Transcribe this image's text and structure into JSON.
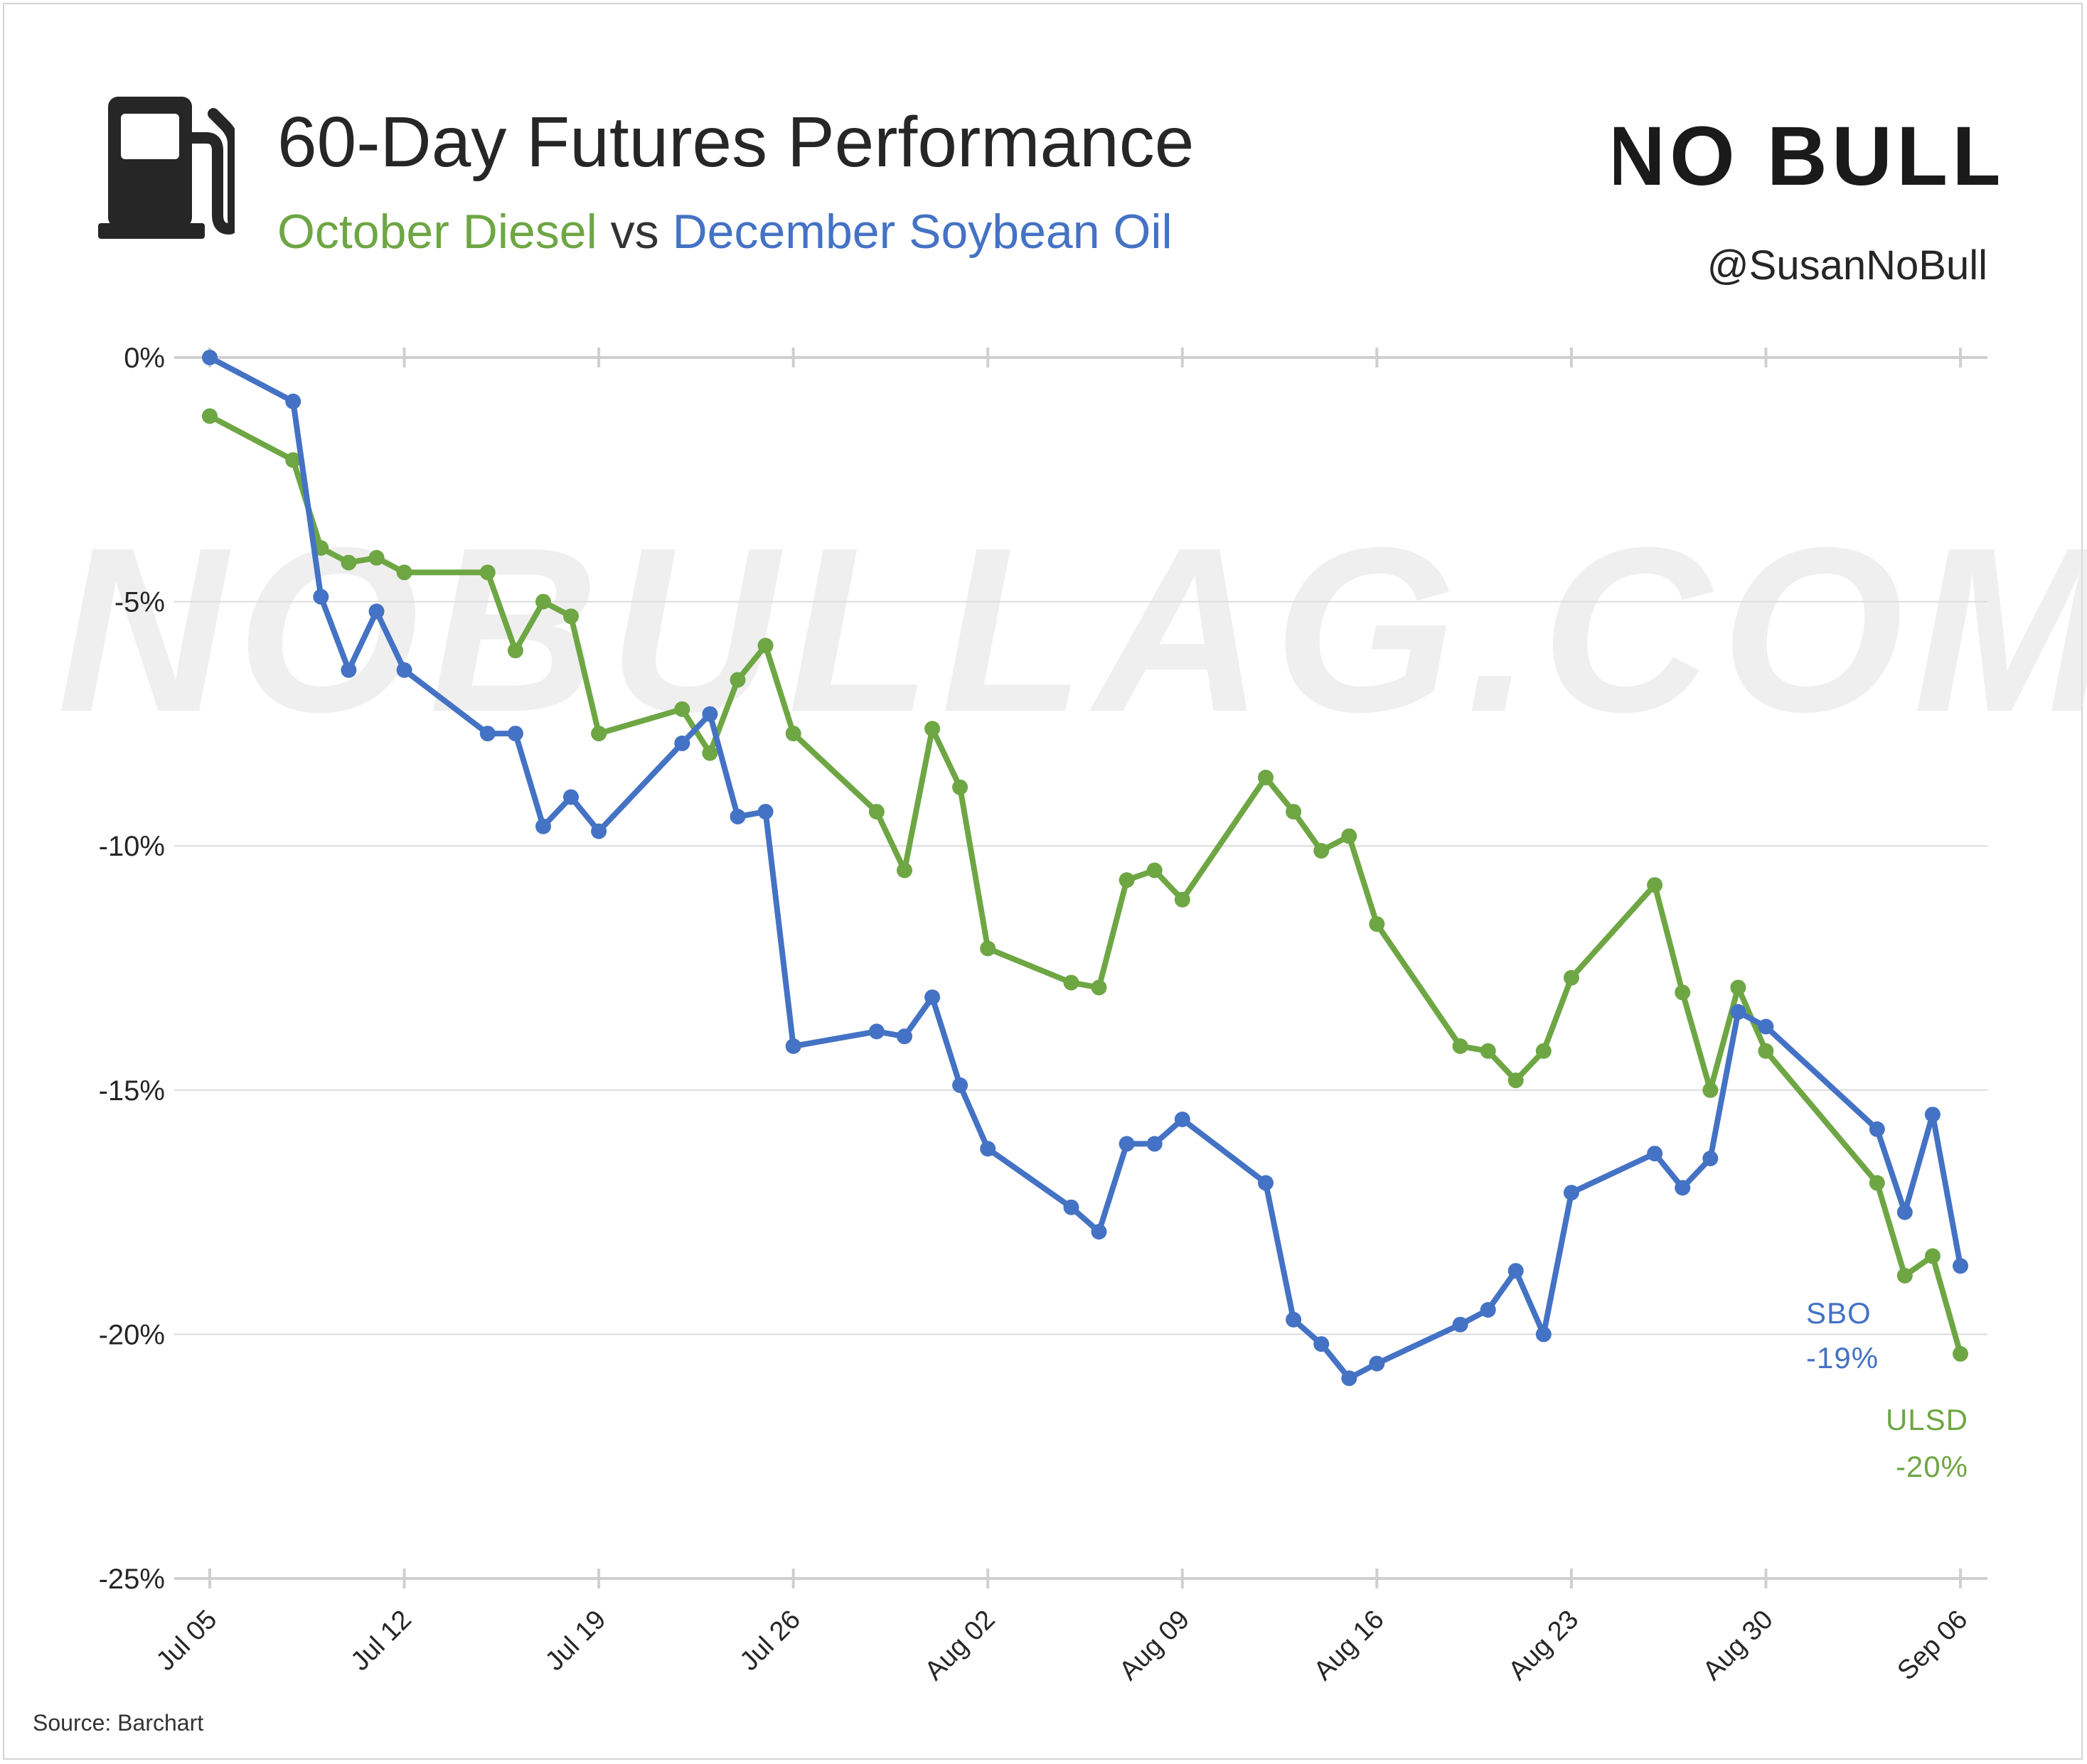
{
  "header": {
    "title": "60-Day Futures Performance",
    "subtitle_part1": "October Diesel",
    "subtitle_vs": "vs",
    "subtitle_part2": "December Soybean Oil",
    "handle": "@SusanNoBull",
    "logo_text": "NO BULL",
    "icon": "gas-pump-icon"
  },
  "watermark": "NOBULLAG.COM",
  "source": "Source: Barchart",
  "colors": {
    "diesel": "#6ea644",
    "soybean_oil": "#4472c4",
    "grid": "#dcdcdc",
    "text": "#262626"
  },
  "chart_data": {
    "type": "line",
    "title": "60-Day Futures Performance",
    "subtitle": "October Diesel vs December Soybean Oil",
    "xlabel": "",
    "ylabel": "",
    "x_ticks": [
      "Jul 05",
      "Jul 12",
      "Jul 19",
      "Jul 26",
      "Aug 02",
      "Aug 09",
      "Aug 16",
      "Aug 23",
      "Aug 30",
      "Sep 06"
    ],
    "y_ticks": [
      "0%",
      "-5%",
      "-10%",
      "-15%",
      "-20%",
      "-25%"
    ],
    "ylim": [
      -25,
      0
    ],
    "grid": true,
    "legend": "end-of-line labels",
    "series": [
      {
        "name": "ULSD",
        "end_label_value": "-20%",
        "points": [
          [
            "Jul 05",
            -1.2
          ],
          [
            "Jul 08",
            -2.1
          ],
          [
            "Jul 09",
            -3.9
          ],
          [
            "Jul 10",
            -4.2
          ],
          [
            "Jul 11",
            -4.1
          ],
          [
            "Jul 12",
            -4.4
          ],
          [
            "Jul 15",
            -4.4
          ],
          [
            "Jul 16",
            -6.0
          ],
          [
            "Jul 17",
            -5.0
          ],
          [
            "Jul 18",
            -5.3
          ],
          [
            "Jul 19",
            -7.7
          ],
          [
            "Jul 22",
            -7.2
          ],
          [
            "Jul 23",
            -8.1
          ],
          [
            "Jul 24",
            -6.6
          ],
          [
            "Jul 25",
            -5.9
          ],
          [
            "Jul 26",
            -7.7
          ],
          [
            "Jul 29",
            -9.3
          ],
          [
            "Jul 30",
            -10.5
          ],
          [
            "Jul 31",
            -7.6
          ],
          [
            "Aug 01",
            -8.8
          ],
          [
            "Aug 02",
            -12.1
          ],
          [
            "Aug 05",
            -12.8
          ],
          [
            "Aug 06",
            -12.9
          ],
          [
            "Aug 07",
            -10.7
          ],
          [
            "Aug 08",
            -10.5
          ],
          [
            "Aug 09",
            -11.1
          ],
          [
            "Aug 12",
            -8.6
          ],
          [
            "Aug 13",
            -9.3
          ],
          [
            "Aug 14",
            -10.1
          ],
          [
            "Aug 15",
            -9.8
          ],
          [
            "Aug 16",
            -11.6
          ],
          [
            "Aug 19",
            -14.1
          ],
          [
            "Aug 20",
            -14.2
          ],
          [
            "Aug 21",
            -14.8
          ],
          [
            "Aug 22",
            -14.2
          ],
          [
            "Aug 23",
            -12.7
          ],
          [
            "Aug 26",
            -10.8
          ],
          [
            "Aug 27",
            -13.0
          ],
          [
            "Aug 28",
            -15.0
          ],
          [
            "Aug 29",
            -12.9
          ],
          [
            "Aug 30",
            -14.2
          ],
          [
            "Sep 03",
            -16.9
          ],
          [
            "Sep 04",
            -18.8
          ],
          [
            "Sep 05",
            -18.4
          ],
          [
            "Sep 06",
            -20.4
          ]
        ]
      },
      {
        "name": "SBO",
        "end_label_value": "-19%",
        "points": [
          [
            "Jul 05",
            0.0
          ],
          [
            "Jul 08",
            -0.9
          ],
          [
            "Jul 09",
            -4.9
          ],
          [
            "Jul 10",
            -6.4
          ],
          [
            "Jul 11",
            -5.2
          ],
          [
            "Jul 12",
            -6.4
          ],
          [
            "Jul 15",
            -7.7
          ],
          [
            "Jul 16",
            -7.7
          ],
          [
            "Jul 17",
            -9.6
          ],
          [
            "Jul 18",
            -9.0
          ],
          [
            "Jul 19",
            -9.7
          ],
          [
            "Jul 22",
            -7.9
          ],
          [
            "Jul 23",
            -7.3
          ],
          [
            "Jul 24",
            -9.4
          ],
          [
            "Jul 25",
            -9.3
          ],
          [
            "Jul 26",
            -14.1
          ],
          [
            "Jul 29",
            -13.8
          ],
          [
            "Jul 30",
            -13.9
          ],
          [
            "Jul 31",
            -13.1
          ],
          [
            "Aug 01",
            -14.9
          ],
          [
            "Aug 02",
            -16.2
          ],
          [
            "Aug 05",
            -17.4
          ],
          [
            "Aug 06",
            -17.9
          ],
          [
            "Aug 07",
            -16.1
          ],
          [
            "Aug 08",
            -16.1
          ],
          [
            "Aug 09",
            -15.6
          ],
          [
            "Aug 12",
            -16.9
          ],
          [
            "Aug 13",
            -19.7
          ],
          [
            "Aug 14",
            -20.2
          ],
          [
            "Aug 15",
            -20.9
          ],
          [
            "Aug 16",
            -20.6
          ],
          [
            "Aug 19",
            -19.8
          ],
          [
            "Aug 20",
            -19.5
          ],
          [
            "Aug 21",
            -18.7
          ],
          [
            "Aug 22",
            -20.0
          ],
          [
            "Aug 23",
            -17.1
          ],
          [
            "Aug 26",
            -16.3
          ],
          [
            "Aug 27",
            -17.0
          ],
          [
            "Aug 28",
            -16.4
          ],
          [
            "Aug 29",
            -13.4
          ],
          [
            "Aug 30",
            -13.7
          ],
          [
            "Sep 03",
            -15.8
          ],
          [
            "Sep 04",
            -17.5
          ],
          [
            "Sep 05",
            -15.5
          ],
          [
            "Sep 06",
            -18.6
          ]
        ]
      }
    ]
  }
}
